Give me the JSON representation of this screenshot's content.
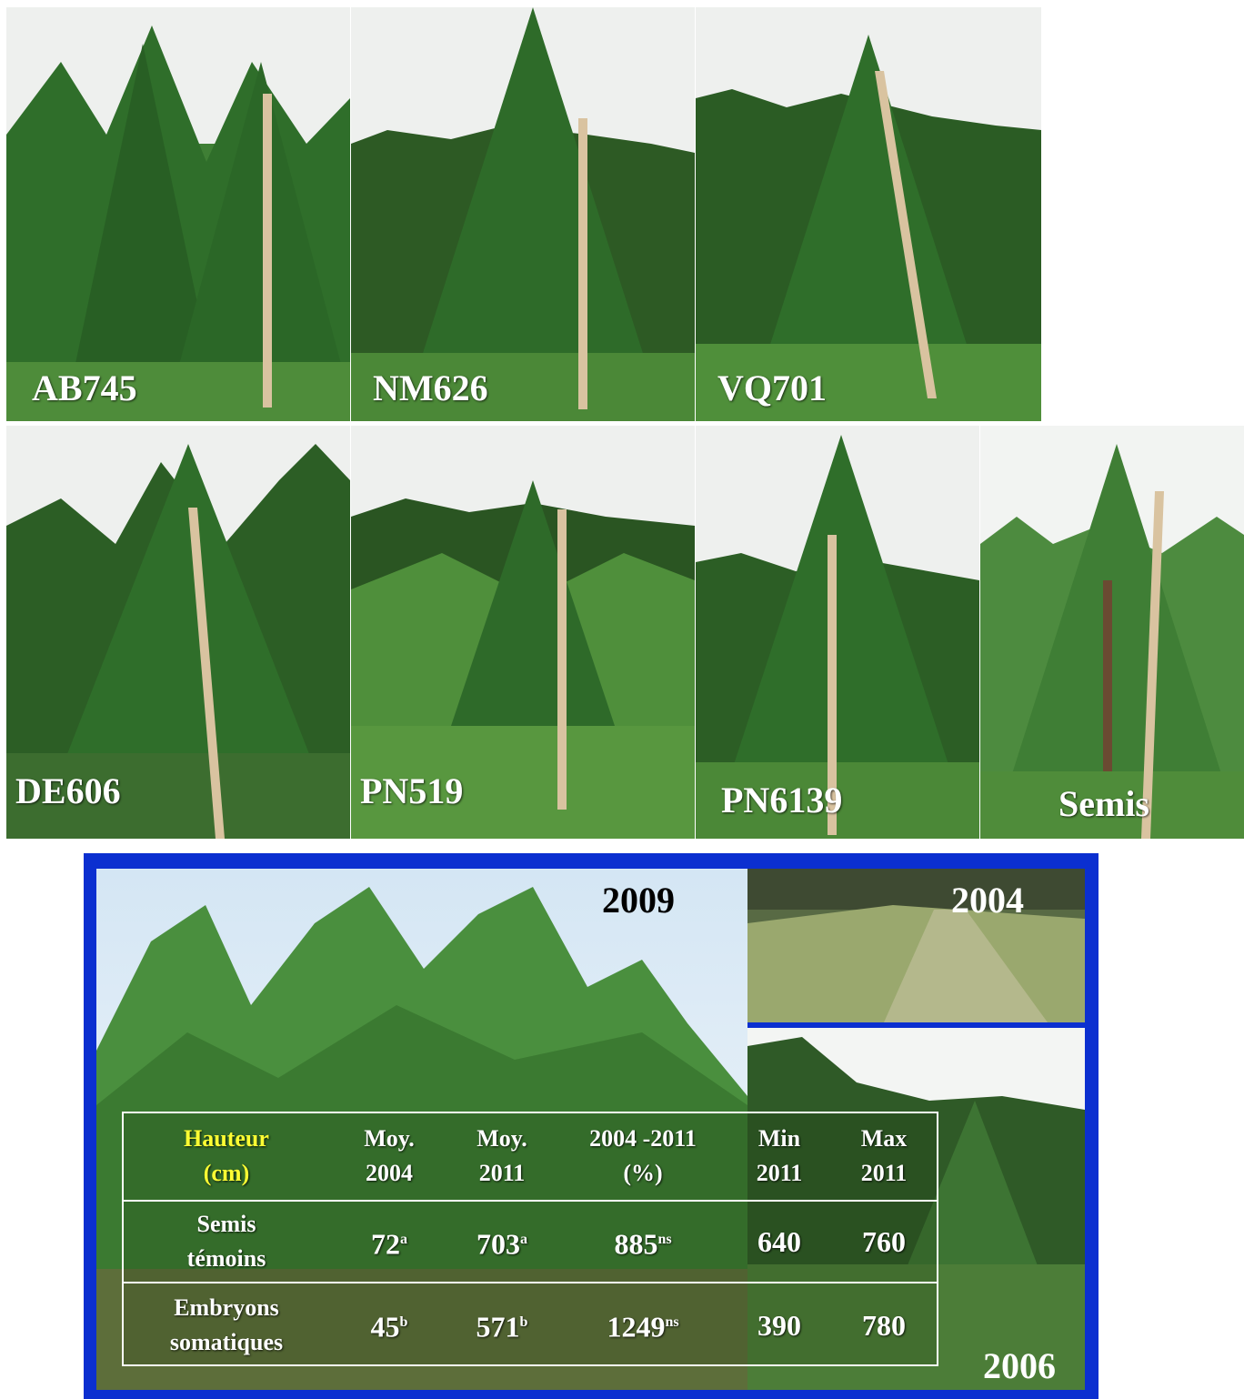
{
  "photos": [
    {
      "label": "AB745"
    },
    {
      "label": "NM626"
    },
    {
      "label": "VQ701"
    },
    {
      "label": "DE606"
    },
    {
      "label": "PN519"
    },
    {
      "label": "PN6139"
    },
    {
      "label": "Semis"
    }
  ],
  "years": {
    "main": "2009",
    "top_right": "2004",
    "bottom_right": "2006"
  },
  "table": {
    "headers": [
      {
        "line1": "Hauteur",
        "line2": "(cm)"
      },
      {
        "line1": "Moy.",
        "line2": "2004"
      },
      {
        "line1": "Moy.",
        "line2": "2011"
      },
      {
        "line1": "2004 -2011",
        "line2": "(%)"
      },
      {
        "line1": "Min",
        "line2": "2011"
      },
      {
        "line1": "Max",
        "line2": "2011"
      }
    ],
    "rows": [
      {
        "name1": "Semis",
        "name2": "témoins",
        "moy2004": "72",
        "moy2004_sup": "a",
        "moy2011": "703",
        "moy2011_sup": "a",
        "pct": "885",
        "pct_sup": "ns",
        "min": "640",
        "max": "760"
      },
      {
        "name1": "Embryons",
        "name2": "somatiques",
        "moy2004": "45",
        "moy2004_sup": "b",
        "moy2011": "571",
        "moy2011_sup": "b",
        "pct": "1249",
        "pct_sup": "ns",
        "min": "390",
        "max": "780"
      }
    ]
  },
  "colors": {
    "frame": "#0b2fd0",
    "header_highlight": "#ffff33",
    "foliage": "#2f7a2a",
    "sky": "#f0f3f0"
  }
}
